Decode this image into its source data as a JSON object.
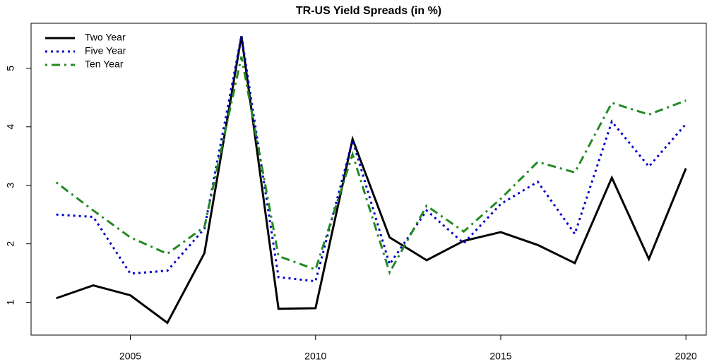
{
  "chart_data": {
    "type": "line",
    "title": "TR-US Yield Spreads (in %)",
    "x": [
      2003,
      2004,
      2005,
      2006,
      2007,
      2008,
      2009,
      2010,
      2011,
      2012,
      2013,
      2014,
      2015,
      2016,
      2017,
      2018,
      2019,
      2020
    ],
    "series": [
      {
        "name": "Two Year",
        "color": "#000000",
        "linestyle": "solid",
        "values": [
          1.07,
          1.29,
          1.12,
          0.65,
          1.84,
          5.55,
          0.89,
          0.9,
          3.79,
          2.11,
          1.72,
          2.05,
          2.2,
          1.98,
          1.67,
          3.13,
          1.74,
          3.29
        ]
      },
      {
        "name": "Five Year",
        "color": "#0000cc",
        "linestyle": "dotted",
        "values": [
          2.5,
          2.46,
          1.49,
          1.54,
          2.26,
          5.56,
          1.43,
          1.36,
          3.77,
          1.65,
          2.57,
          2.01,
          2.68,
          3.06,
          2.17,
          4.09,
          3.32,
          4.05
        ]
      },
      {
        "name": "Ten Year",
        "color": "#228b22",
        "linestyle": "dotdash",
        "values": [
          3.05,
          2.57,
          2.11,
          1.83,
          2.29,
          5.2,
          1.79,
          1.56,
          3.53,
          1.51,
          2.65,
          2.21,
          2.77,
          3.4,
          3.22,
          4.41,
          4.21,
          4.45
        ]
      }
    ],
    "xlim": [
      2002.32,
      2020.55
    ],
    "xticks": [
      2005,
      2010,
      2015,
      2020
    ],
    "ylim": [
      0.44,
      5.77
    ],
    "yticks": [
      1,
      2,
      3,
      4,
      5
    ],
    "legend": "topleft",
    "grid": false
  }
}
